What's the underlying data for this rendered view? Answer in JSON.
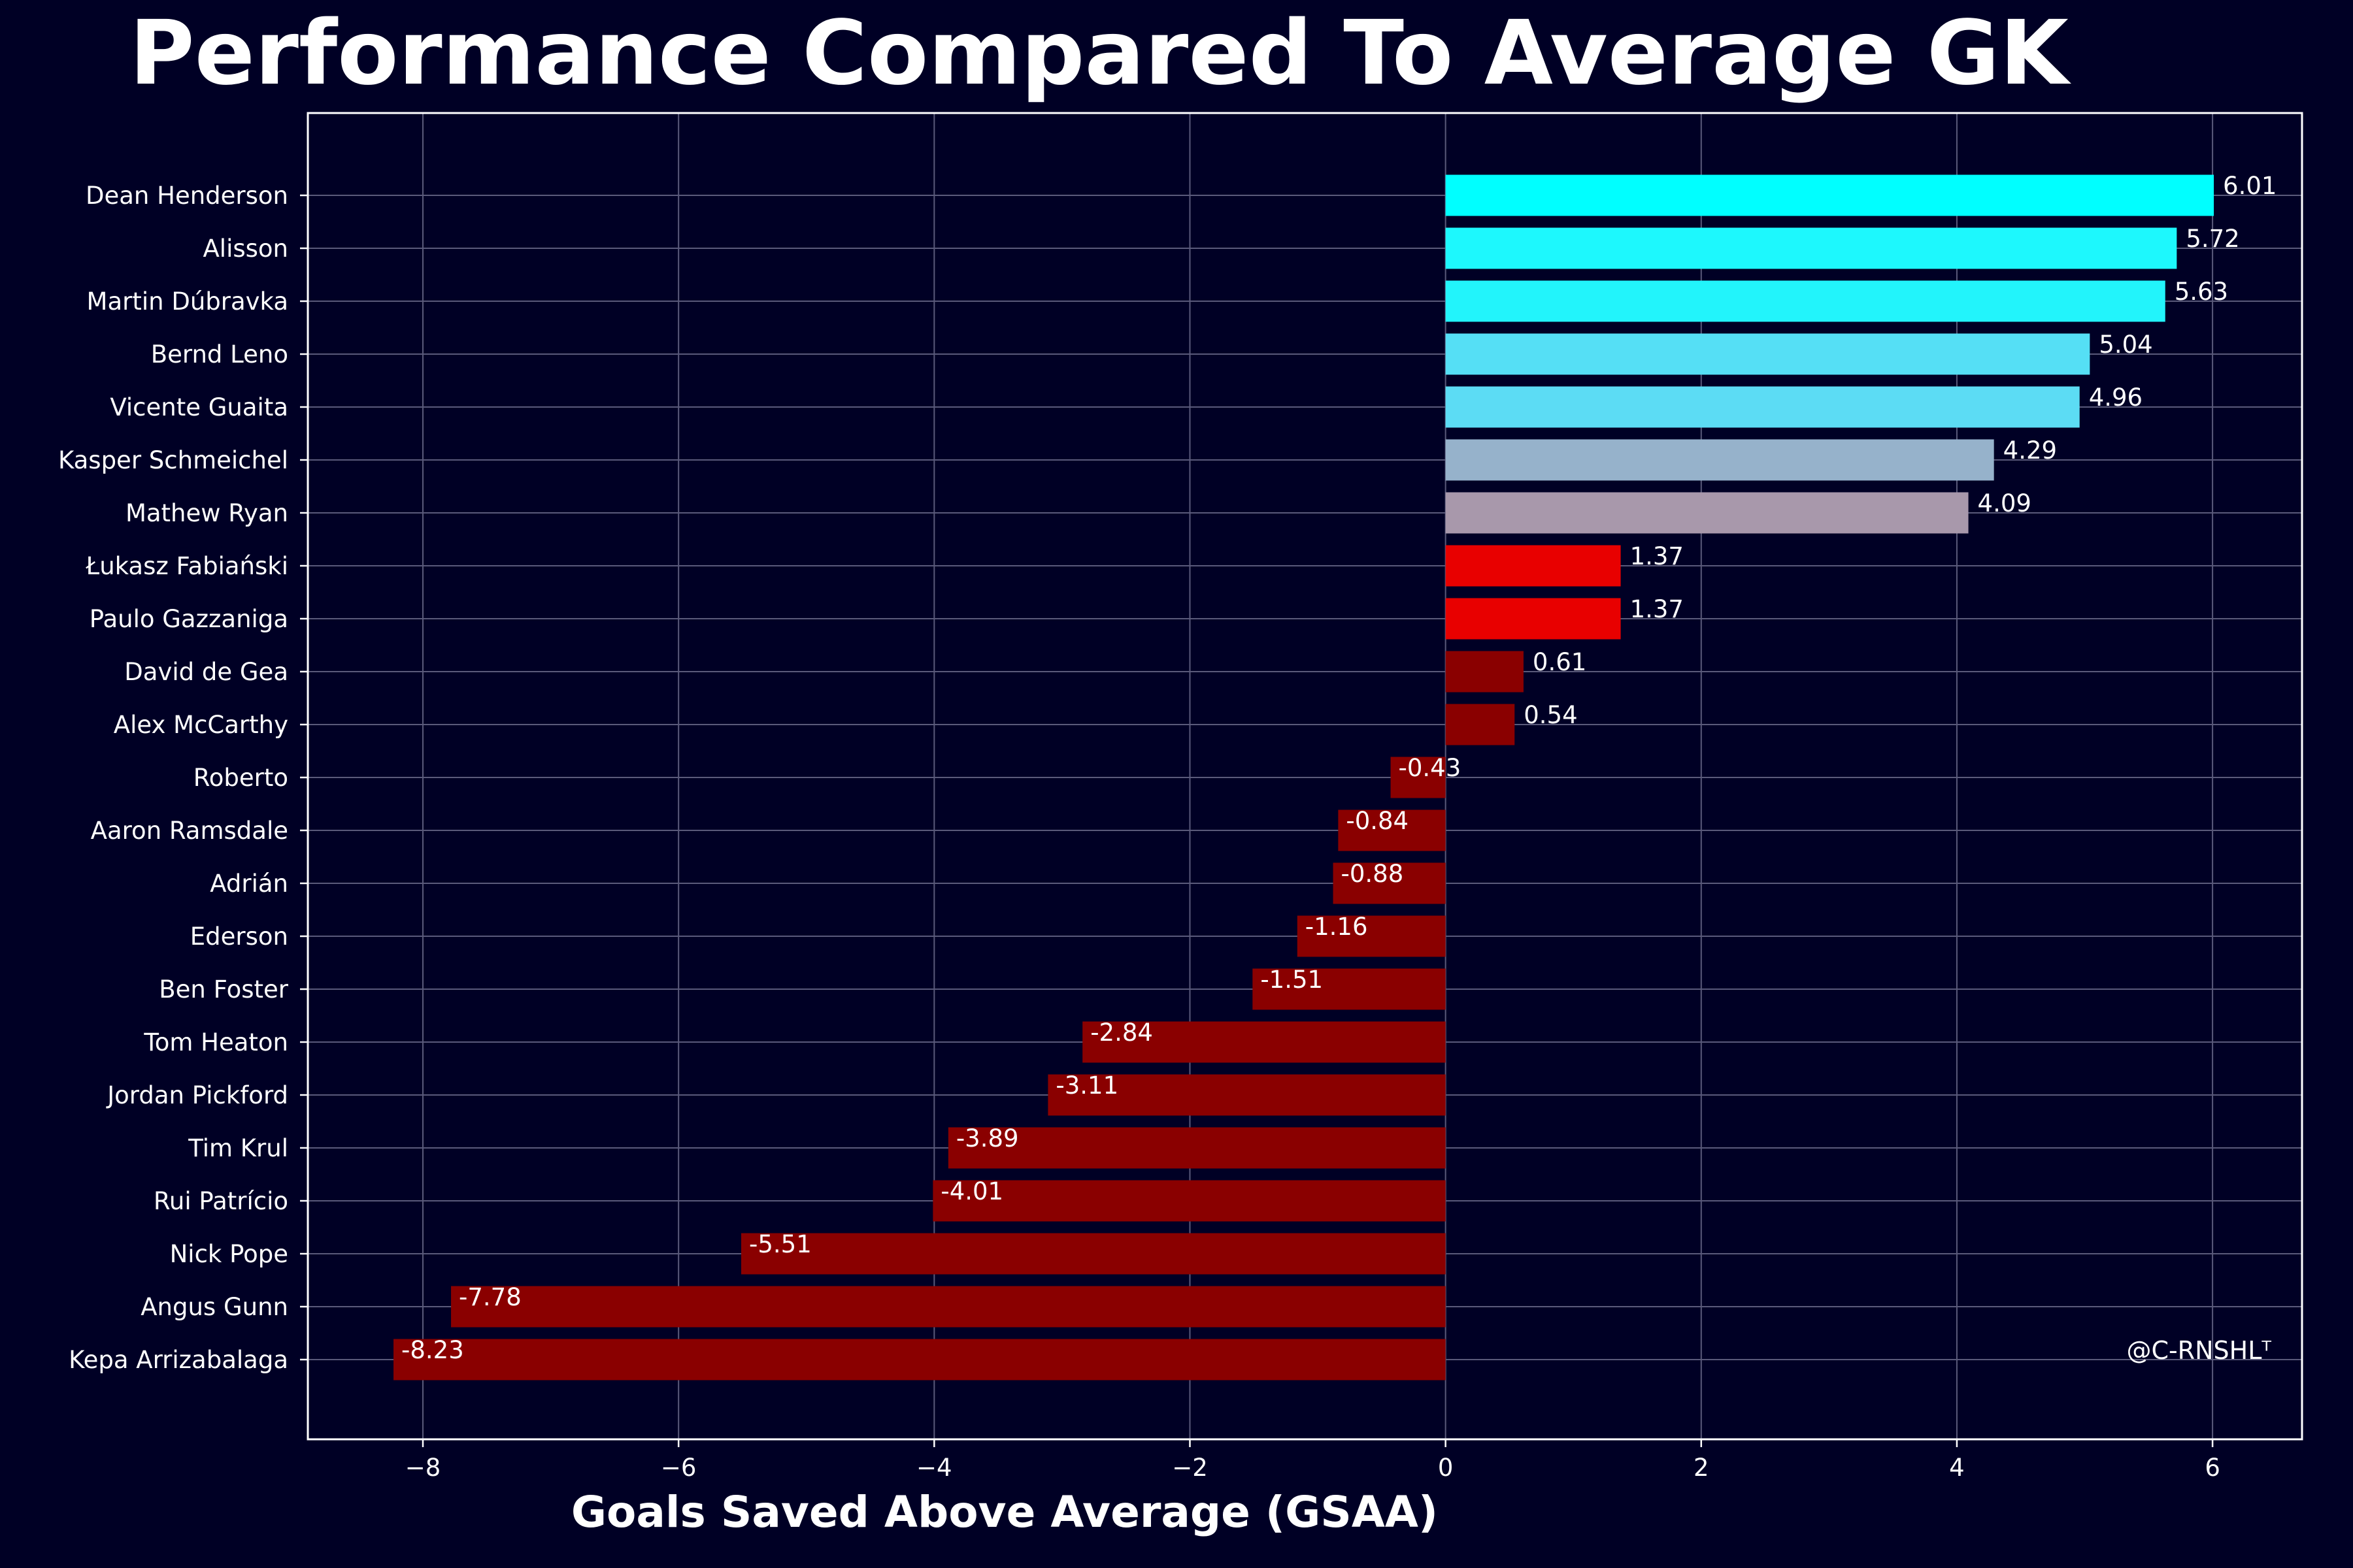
{
  "chart_data": {
    "type": "bar",
    "orientation": "horizontal",
    "title": "Performance Compared To Average GK",
    "xlabel": "Goals Saved Above Average (GSAA)",
    "ylabel": "",
    "xlim": [
      -8.9,
      6.7
    ],
    "xticks": [
      -8,
      -6,
      -4,
      -2,
      0,
      2,
      4,
      6
    ],
    "xtick_labels": [
      "−8",
      "−6",
      "−4",
      "−2",
      "0",
      "2",
      "4",
      "6"
    ],
    "grid": true,
    "watermark": "@C-RNSHLᵀ",
    "categories": [
      "Dean Henderson",
      "Alisson",
      "Martin Dúbravka",
      "Bernd Leno",
      "Vicente Guaita",
      "Kasper Schmeichel",
      "Mathew Ryan",
      "Łukasz Fabiański",
      "Paulo Gazzaniga",
      "David de Gea",
      "Alex McCarthy",
      "Roberto",
      "Aaron Ramsdale",
      "Adrián",
      "Ederson",
      "Ben Foster",
      "Tom Heaton",
      "Jordan Pickford",
      "Tim Krul",
      "Rui Patrício",
      "Nick Pope",
      "Angus Gunn",
      "Kepa Arrizabalaga"
    ],
    "values": [
      6.01,
      5.72,
      5.63,
      5.04,
      4.96,
      4.29,
      4.09,
      1.37,
      1.37,
      0.61,
      0.54,
      -0.43,
      -0.84,
      -0.88,
      -1.16,
      -1.51,
      -2.84,
      -3.11,
      -3.89,
      -4.01,
      -5.51,
      -7.78,
      -8.23
    ],
    "value_labels": [
      "6.01",
      "5.72",
      "5.63",
      "5.04",
      "4.96",
      "4.29",
      "4.09",
      "1.37",
      "1.37",
      "0.61",
      "0.54",
      "-0.43",
      "-0.84",
      "-0.88",
      "-1.16",
      "-1.51",
      "-2.84",
      "-3.11",
      "-3.89",
      "-4.01",
      "-5.51",
      "-7.78",
      "-8.23"
    ],
    "bar_colors": [
      "#00ffff",
      "#1df8fd",
      "#22f4fb",
      "#55dff5",
      "#5cdcf4",
      "#96b2cb",
      "#a898ab",
      "#e80000",
      "#e80000",
      "#8a0000",
      "#8a0000",
      "#8a0000",
      "#8a0000",
      "#8a0000",
      "#8a0000",
      "#8a0000",
      "#8a0000",
      "#8a0000",
      "#8a0000",
      "#8a0000",
      "#8a0000",
      "#8a0000",
      "#8a0000"
    ]
  },
  "colors": {
    "background": "#000025",
    "text": "#ffffff",
    "grid": "#5a5a7a",
    "frame": "#ffffff"
  }
}
